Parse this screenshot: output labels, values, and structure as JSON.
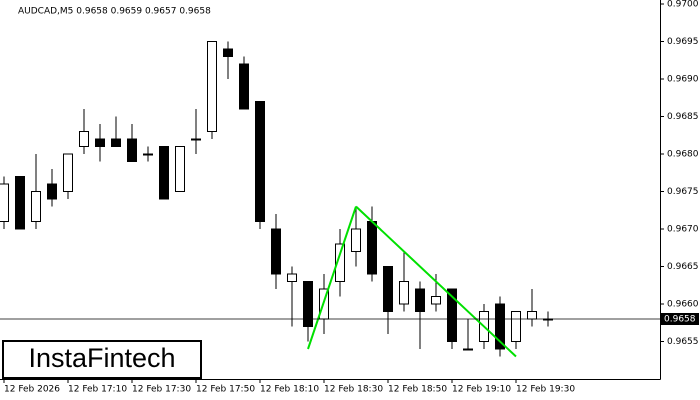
{
  "chart_data": {
    "type": "candlestick",
    "title": "AUDCAD,M5 0.9658 0.9659 0.9657 0.9658",
    "watermark": "InstaFintech",
    "categories": [
      "12 Feb 2026",
      null,
      null,
      null,
      "12 Feb 17:10",
      null,
      null,
      null,
      "12 Feb 17:30",
      null,
      null,
      null,
      "12 Feb 17:50",
      null,
      null,
      null,
      "12 Feb 18:10",
      null,
      null,
      null,
      "12 Feb 18:30",
      null,
      null,
      null,
      "12 Feb 18:50",
      null,
      null,
      null,
      "12 Feb 19:10",
      null,
      null,
      null,
      "12 Feb 19:30",
      null,
      null
    ],
    "open": [
      0.9671,
      0.9677,
      0.9671,
      0.9676,
      0.9675,
      0.9681,
      0.9682,
      0.9682,
      0.9682,
      0.968,
      0.9681,
      0.9675,
      0.9682,
      0.9683,
      0.9694,
      0.9692,
      0.9687,
      0.967,
      0.9663,
      0.9663,
      0.9658,
      0.9663,
      0.9667,
      0.9671,
      0.9665,
      0.966,
      0.9662,
      0.966,
      0.9662,
      0.9654,
      0.9655,
      0.966,
      0.9655,
      0.9658,
      0.9658
    ],
    "high": [
      0.9677,
      0.9677,
      0.968,
      0.9678,
      0.968,
      0.9686,
      0.9684,
      0.9685,
      0.9684,
      0.9681,
      0.9681,
      0.9681,
      0.9686,
      0.9695,
      0.9695,
      0.9693,
      0.9687,
      0.9672,
      0.9665,
      0.9663,
      0.9664,
      0.967,
      0.9673,
      0.9673,
      0.9665,
      0.9667,
      0.9663,
      0.9664,
      0.9662,
      0.9658,
      0.966,
      0.9661,
      0.9659,
      0.9662,
      0.9659
    ],
    "low": [
      0.967,
      0.967,
      0.967,
      0.9673,
      0.9674,
      0.968,
      0.9679,
      0.9681,
      0.9679,
      0.9679,
      0.9674,
      0.9675,
      0.968,
      0.9682,
      0.969,
      0.9686,
      0.967,
      0.9662,
      0.9657,
      0.9655,
      0.9656,
      0.9661,
      0.9665,
      0.9663,
      0.9656,
      0.9659,
      0.9654,
      0.9659,
      0.9654,
      0.9654,
      0.9654,
      0.9653,
      0.9654,
      0.9657,
      0.9657
    ],
    "close": [
      0.9676,
      0.967,
      0.9675,
      0.9674,
      0.968,
      0.9683,
      0.9681,
      0.9681,
      0.9679,
      0.968,
      0.9674,
      0.9681,
      0.9682,
      0.9695,
      0.9693,
      0.9686,
      0.9671,
      0.9664,
      0.9664,
      0.9657,
      0.9662,
      0.9668,
      0.967,
      0.9664,
      0.9659,
      0.9663,
      0.9659,
      0.9661,
      0.9655,
      0.9654,
      0.9659,
      0.9654,
      0.9659,
      0.9659,
      0.9658
    ],
    "up_color": "#ffffff",
    "down_color": "#000000",
    "ylim": [
      0.965,
      0.97
    ],
    "yticks": [
      {
        "value": 0.97,
        "label": "0.9700"
      },
      0.9695,
      {
        "value": 0.969,
        "label": "0.9690"
      },
      0.9685,
      {
        "value": 0.968,
        "label": "0.9680"
      },
      0.9675,
      {
        "value": 0.967,
        "label": "0.9670"
      },
      0.9665,
      {
        "value": 0.966,
        "label": "0.9660"
      },
      0.9655
    ],
    "last_price": 0.9658,
    "pattern": {
      "color": "#00e000",
      "points": [
        [
          19,
          0.9654
        ],
        [
          22,
          0.9673
        ],
        [
          32,
          0.9653
        ]
      ]
    }
  }
}
